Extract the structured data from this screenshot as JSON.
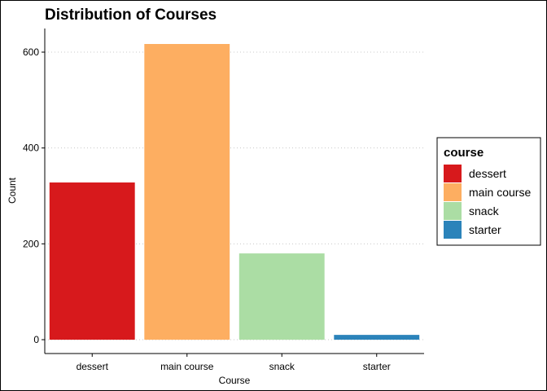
{
  "chart_data": {
    "type": "bar",
    "title": "Distribution of Courses",
    "xlabel": "Course",
    "ylabel": "Count",
    "categories": [
      "dessert",
      "main course",
      "snack",
      "starter"
    ],
    "values": [
      328,
      617,
      180,
      10
    ],
    "colors": [
      "#d7191c",
      "#fdae61",
      "#abdda4",
      "#2b83ba"
    ],
    "ylim": [
      0,
      650
    ],
    "yticks": [
      "0",
      "200",
      "400",
      "600"
    ],
    "grid": "horizontal dotted",
    "legend": {
      "title": "course",
      "placement": "right",
      "entries": [
        "dessert",
        "main course",
        "snack",
        "starter"
      ]
    }
  }
}
